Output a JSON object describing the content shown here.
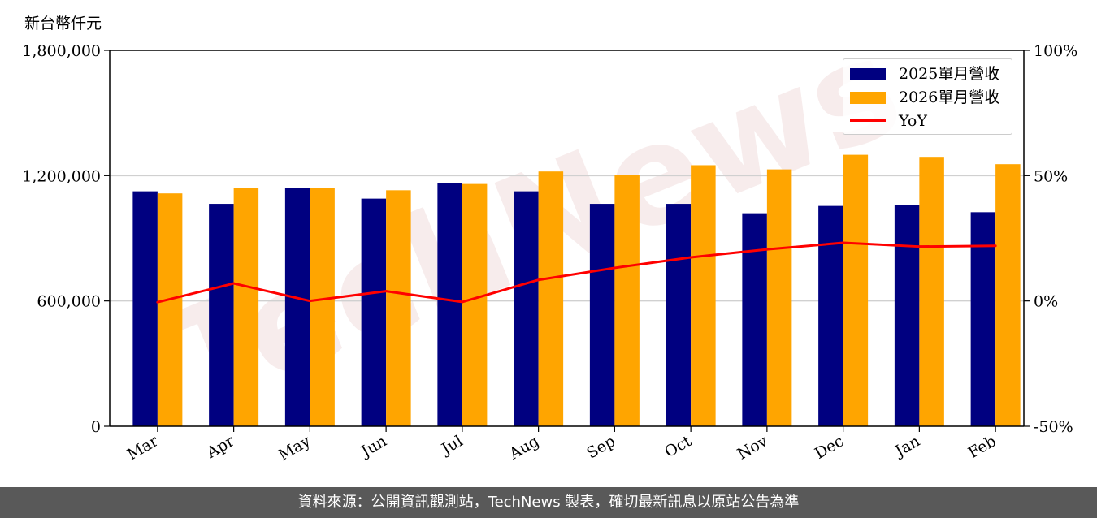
{
  "unit_label": "新台幣仟元",
  "footer": "資料來源：公開資訊觀測站，TechNews 製表，確切最新訊息以原站公告為準",
  "watermark": "TechNews",
  "colors": {
    "series_2025": "#000080",
    "series_2026": "#ffa500",
    "yoy": "#ff0000",
    "grid": "#d0d0d0",
    "footer_bg": "#595959"
  },
  "chart_data": {
    "type": "bar",
    "categories": [
      "Mar",
      "Apr",
      "May",
      "Jun",
      "Jul",
      "Aug",
      "Sep",
      "Oct",
      "Nov",
      "Dec",
      "Jan",
      "Feb"
    ],
    "series": [
      {
        "name": "2025單月營收",
        "values": [
          1125000,
          1065000,
          1140000,
          1090000,
          1165000,
          1125000,
          1065000,
          1065000,
          1020000,
          1055000,
          1060000,
          1025000
        ]
      },
      {
        "name": "2026單月營收",
        "values": [
          1115000,
          1140000,
          1140000,
          1130000,
          1160000,
          1220000,
          1205000,
          1250000,
          1230000,
          1300000,
          1290000,
          1255000
        ]
      }
    ],
    "line_series": {
      "name": "YoY",
      "values": [
        -0.5,
        7.0,
        0.0,
        3.9,
        -0.4,
        8.4,
        13.2,
        17.4,
        20.6,
        23.2,
        21.7,
        22.0
      ]
    },
    "ylabel": "新台幣仟元",
    "ylim": [
      0,
      1800000
    ],
    "yticks": [
      "0",
      "600,000",
      "1,200,000",
      "1,800,000"
    ],
    "y2lim": [
      -50,
      100
    ],
    "y2ticks": [
      "-50%",
      "0%",
      "50%",
      "100%"
    ],
    "grid": true,
    "legend_position": "top-right"
  }
}
